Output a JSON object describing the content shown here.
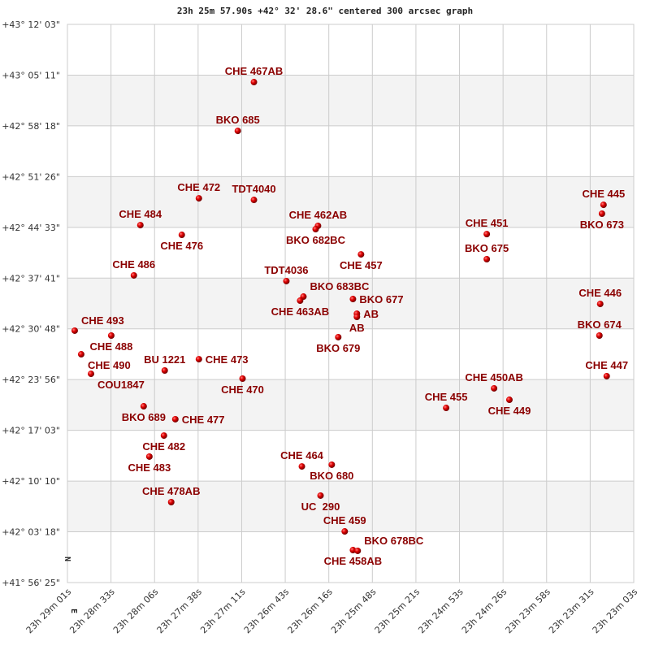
{
  "chart_data": {
    "type": "scatter",
    "title": "23h 25m 57.90s +42° 32' 28.6\" centered 300 arcsec graph",
    "xlabel": "",
    "ylabel": "",
    "grid": true,
    "x_axis": {
      "range": [
        "23h 29m 01s",
        "23h 23m 03s"
      ],
      "reversed": true,
      "tick_labels": [
        "23h 29m 01s",
        "23h 28m 33s",
        "23h 28m 06s",
        "23h 27m 38s",
        "23h 27m 11s",
        "23h 26m 43s",
        "23h 26m 16s",
        "23h 25m 48s",
        "23h 25m 21s",
        "23h 24m 53s",
        "23h 24m 26s",
        "23h 23m 58s",
        "23h 23m 31s",
        "23h 23m 03s"
      ]
    },
    "y_axis": {
      "range": [
        "+41° 56' 25\"",
        "+43° 12' 03\""
      ],
      "tick_labels": [
        "+43° 12' 03\"",
        "+43° 05' 11\"",
        "+42° 58' 18\"",
        "+42° 51' 26\"",
        "+42° 44' 33\"",
        "+42° 37' 41\"",
        "+42° 30' 48\"",
        "+42° 23' 56\"",
        "+42° 17' 03\"",
        "+42° 10' 10\"",
        "+42° 03' 18\"",
        "+41° 56' 25\""
      ]
    },
    "compass": {
      "north": "N",
      "east": "E"
    },
    "colors": {
      "marker": "#dd0000",
      "label": "#8b0000",
      "band": "#f3f3f3",
      "grid": "#cccccc"
    },
    "points": [
      {
        "name": "CHE 467AB",
        "ra": "23h 27m 03.1s",
        "dec": "+43° 04' 13.7\""
      },
      {
        "name": "BKO 685",
        "ra": "23h 27m 13.3s",
        "dec": "+42° 57' 37\""
      },
      {
        "name": "CHE 472",
        "ra": "23h 27m 37.9s",
        "dec": "+42° 48' 29\""
      },
      {
        "name": "TDT4040",
        "ra": "23h 27m 03.1s",
        "dec": "+42° 48' 16\""
      },
      {
        "name": "CHE 484",
        "ra": "23h 28m 14.9s",
        "dec": "+42° 44' 51\""
      },
      {
        "name": "CHE 476",
        "ra": "23h 27m 48.7s",
        "dec": "+42° 43' 32\""
      },
      {
        "name": "CHE 462AB",
        "ra": "23h 26m 22.6s",
        "dec": "+42° 44' 45\""
      },
      {
        "name": "BKO 682BC",
        "ra": "23h 26m 24.1s",
        "dec": "+42° 44' 18\""
      },
      {
        "name": "CHE 457",
        "ra": "23h 25m 55.4s",
        "dec": "+42° 40' 53\""
      },
      {
        "name": "CHE 451",
        "ra": "23h 24m 35.9s",
        "dec": "+42° 43' 38\""
      },
      {
        "name": "BKO 675",
        "ra": "23h 24m 35.9s",
        "dec": "+42° 40' 14\""
      },
      {
        "name": "CHE 445",
        "ra": "23h 23m 22.1s",
        "dec": "+42° 47' 36\""
      },
      {
        "name": "BKO 673",
        "ra": "23h 23m 23.1s",
        "dec": "+42° 46' 24\""
      },
      {
        "name": "CHE 486",
        "ra": "23h 28m 19.0s",
        "dec": "+42° 38' 02\""
      },
      {
        "name": "TDT4036",
        "ra": "23h 26m 42.6s",
        "dec": "+42° 37' 16\""
      },
      {
        "name": "BKO 683BC",
        "ra": "23h 26m 31.8s",
        "dec": "+42° 35' 10\""
      },
      {
        "name": "CHE 463AB",
        "ra": "23h 26m 33.9s",
        "dec": "+42° 34' 37\""
      },
      {
        "name": "BKO 677",
        "ra": "23h 26m 00.5s",
        "dec": "+42° 34' 50\""
      },
      {
        "name": "AB",
        "ra": "23h 25m 58.0s",
        "dec": "+42° 32' 51\""
      },
      {
        "name": "AB",
        "ra": "23h 25m 58.0s",
        "dec": "+42° 32' 25\""
      },
      {
        "name": "BKO 679",
        "ra": "23h 26m 09.8s",
        "dec": "+42° 29' 40\""
      },
      {
        "name": "CHE 446",
        "ra": "23h 23m 24.2s",
        "dec": "+42° 34' 10\""
      },
      {
        "name": "BKO 674",
        "ra": "23h 23m 24.7s",
        "dec": "+42° 29' 53\""
      },
      {
        "name": "CHE 493",
        "ra": "23h 28m 56.4s",
        "dec": "+42° 30' 33\""
      },
      {
        "name": "CHE 488",
        "ra": "23h 28m 33.3s",
        "dec": "+42° 29' 53\""
      },
      {
        "name": "CHE 490",
        "ra": "23h 28m 52.3s",
        "dec": "+42° 27' 21\""
      },
      {
        "name": "COU1847",
        "ra": "23h 28m 46.1s",
        "dec": "+42° 24' 42\""
      },
      {
        "name": "BU 1221",
        "ra": "23h 27m 59.5s",
        "dec": "+42° 25' 09\""
      },
      {
        "name": "CHE 473",
        "ra": "23h 27m 37.9s",
        "dec": "+42° 26' 41\""
      },
      {
        "name": "CHE 470",
        "ra": "23h 27m 10.3s",
        "dec": "+42° 24' 03\""
      },
      {
        "name": "CHE 447",
        "ra": "23h 23m 20.1s",
        "dec": "+42° 24' 23\""
      },
      {
        "name": "CHE 450AB",
        "ra": "23h 24m 31.3s",
        "dec": "+42° 22' 44\""
      },
      {
        "name": "CHE 449",
        "ra": "23h 24m 21.6s",
        "dec": "+42° 21' 11\""
      },
      {
        "name": "CHE 455",
        "ra": "23h 25m 01.6s",
        "dec": "+42° 20' 05\""
      },
      {
        "name": "BKO 689",
        "ra": "23h 28m 12.8s",
        "dec": "+42° 20' 18\""
      },
      {
        "name": "CHE 477",
        "ra": "23h 27m 52.8s",
        "dec": "+42° 18' 33\""
      },
      {
        "name": "CHE 482",
        "ra": "23h 28m 00.0s",
        "dec": "+42° 16' 20\""
      },
      {
        "name": "CHE 483",
        "ra": "23h 28m 09.2s",
        "dec": "+42° 13' 29\""
      },
      {
        "name": "CHE 464",
        "ra": "23h 26m 32.8s",
        "dec": "+42° 12' 09\""
      },
      {
        "name": "BKO 680",
        "ra": "23h 26m 13.9s",
        "dec": "+42° 12' 23\""
      },
      {
        "name": "UC  290",
        "ra": "23h 26m 21.0s",
        "dec": "+42° 08' 12\""
      },
      {
        "name": "CHE 478AB",
        "ra": "23h 27m 55.4s",
        "dec": "+42° 07' 19\""
      },
      {
        "name": "CHE 459",
        "ra": "23h 26m 05.7s",
        "dec": "+42° 03' 21\""
      },
      {
        "name": "CHE 458AB",
        "ra": "23h 26m 00.5s",
        "dec": "+42° 00' 49\""
      },
      {
        "name": "BKO 678BC",
        "ra": "23h 25m 57.5s",
        "dec": "+42° 00' 43\""
      }
    ]
  }
}
